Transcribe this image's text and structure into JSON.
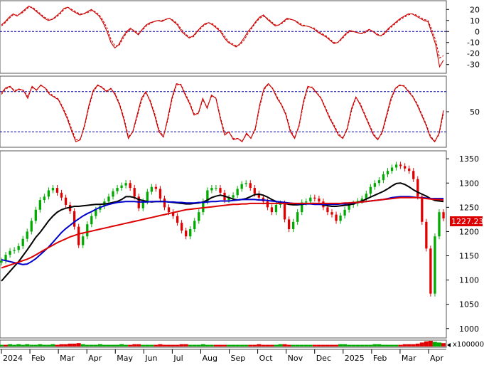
{
  "colors": {
    "up": "#00aa00",
    "down": "#e00000",
    "ma_black": "#000000",
    "ma_blue": "#0000cc",
    "ma_red": "#dd0000",
    "ref_line": "#0000aa",
    "osc_line": "#cc0000",
    "price_label_bg": "#dd0000"
  },
  "chart_data": [
    {
      "panel": "oscillator-top",
      "type": "line",
      "y_ticks": [
        "20",
        "10",
        "0",
        "-10",
        "-20",
        "-30"
      ],
      "ylim": [
        -36,
        26
      ],
      "reference_lines": [
        0
      ],
      "series": [
        {
          "style": "solid",
          "values": [
            6,
            9,
            13,
            16,
            14,
            17,
            20,
            23,
            21,
            18,
            15,
            12,
            10,
            11,
            14,
            17,
            21,
            22,
            19,
            17,
            15,
            16,
            18,
            20,
            17,
            14,
            8,
            0,
            -10,
            -15,
            -12,
            -5,
            0,
            3,
            0,
            -3,
            2,
            6,
            8,
            9,
            10,
            9,
            11,
            12,
            9,
            6,
            0,
            -3,
            -6,
            -4,
            0,
            4,
            7,
            8,
            6,
            3,
            0,
            -6,
            -10,
            -12,
            -14,
            -11,
            -6,
            0,
            4,
            9,
            13,
            15,
            11,
            8,
            5,
            6,
            9,
            12,
            11,
            10,
            7,
            5,
            5,
            4,
            2,
            -1,
            -3,
            -5,
            -8,
            -11,
            -10,
            -6,
            -2,
            1,
            0,
            -1,
            -2,
            0,
            2,
            0,
            -3,
            -4,
            -1,
            3,
            6,
            9,
            12,
            14,
            16,
            16,
            14,
            12,
            10,
            9,
            -1,
            -12,
            -32,
            -26
          ]
        },
        {
          "style": "dashed",
          "values": [
            5,
            8,
            12,
            15,
            15,
            16,
            19,
            22,
            22,
            19,
            16,
            13,
            11,
            11,
            13,
            16,
            20,
            22,
            20,
            18,
            16,
            16,
            17,
            19,
            18,
            15,
            10,
            3,
            -7,
            -13,
            -13,
            -7,
            -1,
            2,
            1,
            -2,
            1,
            5,
            7,
            9,
            10,
            10,
            11,
            12,
            10,
            7,
            2,
            -2,
            -5,
            -5,
            -1,
            3,
            6,
            8,
            7,
            4,
            1,
            -4,
            -9,
            -11,
            -13,
            -12,
            -8,
            -2,
            3,
            8,
            12,
            14,
            12,
            9,
            6,
            6,
            8,
            11,
            11,
            10,
            8,
            6,
            5,
            4,
            3,
            0,
            -2,
            -4,
            -7,
            -10,
            -10,
            -7,
            -3,
            0,
            0,
            -1,
            -2,
            -1,
            1,
            0,
            -2,
            -4,
            -2,
            2,
            5,
            8,
            11,
            13,
            15,
            16,
            15,
            13,
            11,
            10,
            2,
            -8,
            -24,
            -22
          ]
        }
      ]
    },
    {
      "panel": "oscillator-middle",
      "type": "line",
      "y_ticks": [
        "50"
      ],
      "ylim": [
        0,
        100
      ],
      "reference_lines": [
        80,
        20
      ],
      "series": [
        {
          "style": "solid",
          "values": [
            78,
            86,
            88,
            80,
            84,
            82,
            70,
            88,
            82,
            90,
            85,
            76,
            72,
            68,
            55,
            40,
            22,
            5,
            8,
            30,
            60,
            82,
            90,
            86,
            80,
            85,
            75,
            60,
            38,
            10,
            20,
            45,
            70,
            80,
            65,
            45,
            20,
            12,
            40,
            72,
            92,
            90,
            75,
            62,
            45,
            48,
            70,
            55,
            75,
            70,
            40,
            15,
            20,
            8,
            10,
            5,
            18,
            10,
            25,
            60,
            85,
            92,
            84,
            70,
            60,
            45,
            20,
            10,
            30,
            65,
            88,
            86,
            78,
            70,
            55,
            40,
            28,
            15,
            10,
            25,
            55,
            72,
            60,
            45,
            30,
            15,
            8,
            20,
            45,
            70,
            85,
            90,
            88,
            80,
            72,
            60,
            45,
            30,
            12,
            5,
            18,
            52
          ]
        },
        {
          "style": "dashed",
          "values": [
            76,
            84,
            87,
            82,
            83,
            82,
            73,
            86,
            83,
            89,
            86,
            78,
            73,
            69,
            57,
            43,
            25,
            8,
            9,
            28,
            57,
            80,
            89,
            87,
            81,
            84,
            77,
            62,
            41,
            13,
            19,
            42,
            67,
            79,
            67,
            48,
            23,
            13,
            37,
            69,
            90,
            91,
            77,
            64,
            47,
            47,
            68,
            57,
            73,
            71,
            43,
            18,
            19,
            10,
            10,
            6,
            16,
            11,
            23,
            57,
            83,
            91,
            85,
            72,
            61,
            47,
            23,
            11,
            28,
            62,
            86,
            87,
            79,
            71,
            57,
            42,
            30,
            17,
            11,
            23,
            52,
            71,
            62,
            47,
            32,
            17,
            9,
            18,
            42,
            67,
            84,
            89,
            89,
            81,
            73,
            62,
            47,
            32,
            14,
            6,
            16,
            48
          ]
        }
      ]
    },
    {
      "panel": "price",
      "type": "candlestick",
      "y_ticks": [
        "1350",
        "1300",
        "1250",
        "1200",
        "1150",
        "1100",
        "1050",
        "1000"
      ],
      "ylim": [
        985,
        1362
      ],
      "x_ticks": [
        "2024",
        "Feb",
        "Mar",
        "Apr",
        "May",
        "Jun",
        "Jul",
        "Aug",
        "Sep",
        "Oct",
        "Nov",
        "Dec",
        "2025",
        "Feb",
        "Mar",
        "Apr"
      ],
      "last_price_label": "1227.230",
      "close": [
        1140,
        1152,
        1160,
        1162,
        1170,
        1185,
        1200,
        1222,
        1245,
        1265,
        1272,
        1285,
        1290,
        1280,
        1270,
        1255,
        1242,
        1210,
        1172,
        1190,
        1215,
        1232,
        1245,
        1252,
        1262,
        1272,
        1283,
        1290,
        1295,
        1300,
        1290,
        1272,
        1248,
        1262,
        1282,
        1292,
        1288,
        1268,
        1250,
        1240,
        1232,
        1218,
        1202,
        1190,
        1205,
        1222,
        1240,
        1262,
        1285,
        1290,
        1290,
        1280,
        1265,
        1270,
        1275,
        1288,
        1298,
        1300,
        1290,
        1278,
        1270,
        1262,
        1250,
        1240,
        1255,
        1258,
        1225,
        1205,
        1220,
        1240,
        1260,
        1262,
        1270,
        1268,
        1262,
        1250,
        1240,
        1235,
        1222,
        1233,
        1245,
        1255,
        1258,
        1263,
        1268,
        1278,
        1292,
        1300,
        1306,
        1318,
        1325,
        1332,
        1338,
        1335,
        1330,
        1325,
        1308,
        1272,
        1220,
        1165,
        1072,
        1190,
        1240,
        1227
      ],
      "ma_black": [
        1098,
        1108,
        1118,
        1128,
        1138,
        1150,
        1162,
        1175,
        1188,
        1198,
        1210,
        1222,
        1232,
        1240,
        1245,
        1248,
        1250,
        1252,
        1252,
        1253,
        1254,
        1255,
        1256,
        1256,
        1257,
        1258,
        1260,
        1262,
        1266,
        1272,
        1272,
        1270,
        1266,
        1264,
        1262,
        1261,
        1262,
        1262,
        1262,
        1261,
        1260,
        1259,
        1258,
        1257,
        1257,
        1258,
        1259,
        1261,
        1265,
        1270,
        1273,
        1275,
        1273,
        1270,
        1267,
        1265,
        1266,
        1268,
        1272,
        1276,
        1277,
        1275,
        1271,
        1266,
        1262,
        1260,
        1258,
        1256,
        1255,
        1255,
        1256,
        1257,
        1258,
        1258,
        1257,
        1255,
        1253,
        1252,
        1252,
        1253,
        1254,
        1255,
        1257,
        1260,
        1263,
        1267,
        1271,
        1275,
        1279,
        1283,
        1288,
        1294,
        1299,
        1300,
        1297,
        1292,
        1286,
        1281,
        1277,
        1273,
        1268,
        1264,
        1263,
        1262
      ],
      "ma_blue": [
        1142,
        1140,
        1138,
        1136,
        1134,
        1132,
        1133,
        1138,
        1144,
        1152,
        1160,
        1168,
        1178,
        1188,
        1198,
        1206,
        1213,
        1220,
        1226,
        1232,
        1237,
        1241,
        1246,
        1250,
        1253,
        1256,
        1258,
        1260,
        1261,
        1262,
        1262,
        1262,
        1261,
        1261,
        1261,
        1262,
        1262,
        1262,
        1262,
        1261,
        1261,
        1260,
        1260,
        1259,
        1259,
        1259,
        1260,
        1260,
        1261,
        1262,
        1262,
        1263,
        1263,
        1263,
        1264,
        1265,
        1266,
        1266,
        1266,
        1266,
        1265,
        1265,
        1264,
        1263,
        1262,
        1261,
        1260,
        1259,
        1258,
        1257,
        1257,
        1257,
        1257,
        1256,
        1256,
        1256,
        1256,
        1256,
        1256,
        1257,
        1257,
        1258,
        1259,
        1260,
        1261,
        1262,
        1263,
        1264,
        1265,
        1266,
        1268,
        1270,
        1271,
        1272,
        1272,
        1272,
        1271,
        1270,
        1270,
        1269,
        1268,
        1268,
        1268,
        1268
      ],
      "ma_red": [
        1125,
        1128,
        1131,
        1134,
        1137,
        1140,
        1143,
        1147,
        1152,
        1157,
        1162,
        1167,
        1172,
        1177,
        1181,
        1185,
        1189,
        1192,
        1195,
        1197,
        1199,
        1201,
        1203,
        1205,
        1207,
        1209,
        1211,
        1213,
        1215,
        1217,
        1219,
        1221,
        1223,
        1225,
        1227,
        1229,
        1231,
        1233,
        1235,
        1237,
        1239,
        1241,
        1243,
        1245,
        1246,
        1247,
        1248,
        1249,
        1250,
        1251,
        1252,
        1253,
        1254,
        1255,
        1256,
        1256,
        1257,
        1257,
        1258,
        1258,
        1258,
        1258,
        1258,
        1258,
        1258,
        1258,
        1258,
        1258,
        1258,
        1258,
        1258,
        1258,
        1258,
        1258,
        1258,
        1258,
        1258,
        1258,
        1258,
        1258,
        1259,
        1259,
        1260,
        1260,
        1261,
        1262,
        1263,
        1264,
        1265,
        1266,
        1267,
        1268,
        1269,
        1270,
        1270,
        1270,
        1270,
        1270,
        1269,
        1268,
        1267,
        1266,
        1266,
        1265
      ]
    },
    {
      "panel": "volume",
      "type": "bar",
      "unit_label": "x100000",
      "values": [
        3,
        3,
        4,
        3,
        4,
        3,
        4,
        3,
        3,
        4,
        3,
        3,
        4,
        3,
        4,
        4,
        5,
        5,
        6,
        4,
        3,
        3,
        3,
        4,
        3,
        3,
        3,
        3,
        4,
        3,
        3,
        4,
        4,
        3,
        3,
        3,
        3,
        4,
        3,
        3,
        3,
        3,
        4,
        4,
        3,
        3,
        3,
        4,
        3,
        3,
        3,
        3,
        3,
        3,
        3,
        3,
        3,
        3,
        3,
        3,
        4,
        3,
        3,
        3,
        3,
        4,
        4,
        3,
        3,
        3,
        3,
        3,
        3,
        3,
        3,
        3,
        3,
        3,
        3,
        4,
        4,
        3,
        3,
        3,
        3,
        3,
        3,
        4,
        4,
        3,
        3,
        3,
        3,
        3,
        4,
        4,
        4,
        5,
        7,
        9,
        10,
        8,
        7,
        6
      ],
      "up_days": [
        1,
        0,
        1,
        1,
        1,
        1,
        1,
        1,
        1,
        1,
        1,
        1,
        1,
        0,
        0,
        0,
        0,
        0,
        0,
        1,
        1,
        1,
        1,
        1,
        1,
        1,
        1,
        1,
        1,
        1,
        0,
        0,
        0,
        1,
        1,
        1,
        0,
        0,
        0,
        0,
        0,
        0,
        0,
        0,
        1,
        1,
        1,
        1,
        1,
        1,
        0,
        0,
        0,
        1,
        1,
        1,
        1,
        1,
        0,
        0,
        0,
        0,
        0,
        0,
        1,
        1,
        0,
        0,
        1,
        1,
        1,
        1,
        1,
        0,
        0,
        0,
        0,
        0,
        0,
        1,
        1,
        1,
        1,
        1,
        1,
        1,
        1,
        1,
        1,
        1,
        1,
        1,
        1,
        0,
        0,
        0,
        0,
        0,
        0,
        0,
        0,
        1,
        1,
        0
      ]
    }
  ]
}
